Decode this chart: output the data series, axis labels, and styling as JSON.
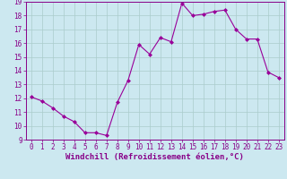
{
  "x": [
    0,
    1,
    2,
    3,
    4,
    5,
    6,
    7,
    8,
    9,
    10,
    11,
    12,
    13,
    14,
    15,
    16,
    17,
    18,
    19,
    20,
    21,
    22,
    23
  ],
  "y": [
    12.1,
    11.8,
    11.3,
    10.7,
    10.3,
    9.5,
    9.5,
    9.3,
    11.7,
    13.3,
    15.9,
    15.2,
    16.4,
    16.1,
    18.9,
    18.0,
    18.1,
    18.3,
    18.4,
    17.0,
    16.3,
    16.3,
    13.9,
    13.5
  ],
  "line_color": "#990099",
  "marker": "D",
  "marker_size": 2,
  "bg_color": "#cce8f0",
  "grid_color": "#aacccc",
  "xlabel": "Windchill (Refroidissement éolien,°C)",
  "xlim": [
    -0.5,
    23.5
  ],
  "ylim": [
    9,
    19
  ],
  "yticks": [
    9,
    10,
    11,
    12,
    13,
    14,
    15,
    16,
    17,
    18,
    19
  ],
  "xticks": [
    0,
    1,
    2,
    3,
    4,
    5,
    6,
    7,
    8,
    9,
    10,
    11,
    12,
    13,
    14,
    15,
    16,
    17,
    18,
    19,
    20,
    21,
    22,
    23
  ],
  "tick_color": "#880088",
  "label_color": "#880088",
  "spine_color": "#880088",
  "tick_fontsize": 5.5,
  "xlabel_fontsize": 6.5
}
